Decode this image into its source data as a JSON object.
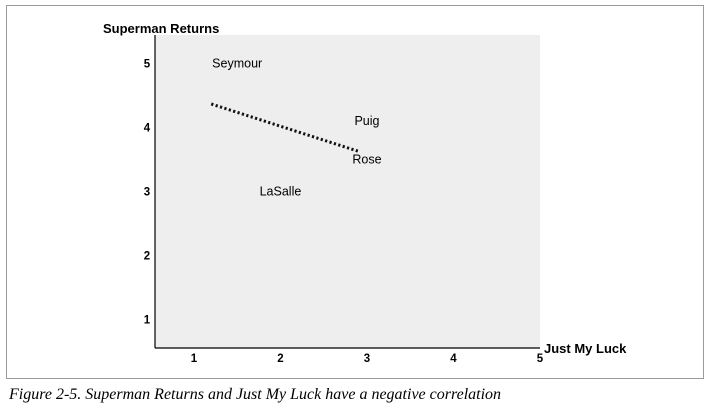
{
  "chart_data": {
    "type": "scatter",
    "title": "",
    "xlabel": "Just My Luck",
    "ylabel": "Superman Returns",
    "xlim": [
      0.55,
      5
    ],
    "ylim": [
      0.55,
      5.45
    ],
    "xticks": [
      1,
      2,
      3,
      4,
      5
    ],
    "yticks": [
      1,
      2,
      3,
      4,
      5
    ],
    "grid": false,
    "background": "#eeeeee",
    "points": [
      {
        "label": "Seymour",
        "x": 1.5,
        "y": 5.0
      },
      {
        "label": "Puig",
        "x": 3.0,
        "y": 4.1
      },
      {
        "label": "Rose",
        "x": 3.0,
        "y": 3.5
      },
      {
        "label": "LaSalle",
        "x": 2.0,
        "y": 3.0
      }
    ],
    "trendline": {
      "style": "dotted",
      "x": [
        1.2,
        2.9
      ],
      "y": [
        4.37,
        3.63
      ]
    }
  },
  "caption": "Figure 2-5. Superman Returns and Just My Luck have a negative correlation"
}
